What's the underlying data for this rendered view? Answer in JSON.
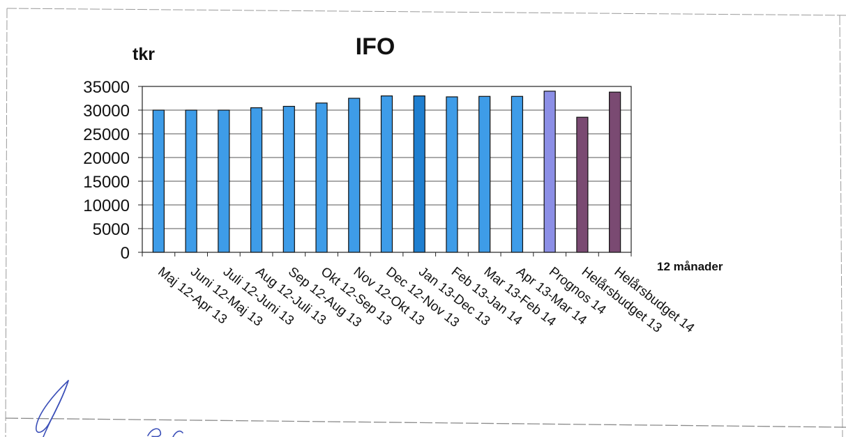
{
  "chart_data": {
    "type": "bar",
    "title": "IFO",
    "ylabel": "tkr",
    "xlabel": "12 månader",
    "ylim": [
      0,
      35000
    ],
    "yticks": [
      0,
      5000,
      10000,
      15000,
      20000,
      25000,
      30000,
      35000
    ],
    "grid": true,
    "categories": [
      "Maj 12-Apr 13",
      "Juni 12-Maj 13",
      "Juli 12-Juni 13",
      "Aug 12-Juli 13",
      "Sep 12-Aug 13",
      "Okt 12-Sep 13",
      "Nov 12-Okt 13",
      "Dec 12-Nov 13",
      "Jan 13-Dec 13",
      "Feb 13-Jan 14",
      "Mar 13-Feb 14",
      "Apr 13-Mar 14",
      "Prognos 14",
      "Helårsbudget 13",
      "Helårsbudget 14"
    ],
    "values": [
      30000,
      30000,
      30000,
      30500,
      30800,
      31500,
      32500,
      33000,
      33000,
      32800,
      32900,
      32900,
      34000,
      28500,
      33800
    ],
    "bar_colors": [
      "#3e9ce8",
      "#3e9ce8",
      "#3e9ce8",
      "#3e9ce8",
      "#3e9ce8",
      "#3e9ce8",
      "#3e9ce8",
      "#3e9ce8",
      "#1f7fd0",
      "#3e9ce8",
      "#3e9ce8",
      "#3e9ce8",
      "#8c8fe6",
      "#7a4a72",
      "#7a4a72"
    ]
  }
}
